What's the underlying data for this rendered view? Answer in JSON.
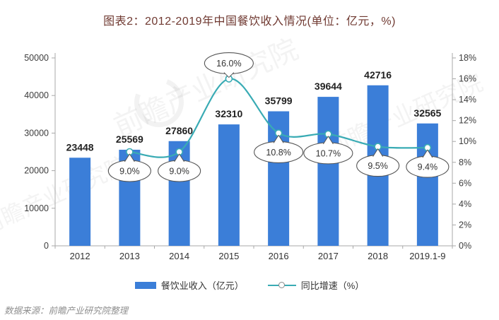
{
  "title": "图表2：2012-2019年中国餐饮收入情况(单位：亿元，%)",
  "source_note": "数据来源：前瞻产业研究院整理",
  "watermark": "前瞻产业研究院",
  "colors": {
    "bar": "#3b7ed8",
    "line": "#39abb4",
    "axis": "#a8a8a8",
    "axis_label": "#3c3c3c",
    "value_label": "#222222",
    "bubble_border": "#555555",
    "bubble_text": "#333333",
    "title": "#703a32",
    "source": "#8f8f8f"
  },
  "legend": [
    {
      "type": "bar",
      "label": "餐饮业收入（亿元）"
    },
    {
      "type": "line",
      "label": "同比增速（%）"
    }
  ],
  "chart_data": {
    "type": "bar+line combo",
    "title": "图表2：2012-2019年中国餐饮收入情况(单位：亿元，%)",
    "grid": false,
    "legend_position": "bottom",
    "categories": [
      "2012",
      "2013",
      "2014",
      "2015",
      "2016",
      "2017",
      "2018",
      "2019.1-9"
    ],
    "series": [
      {
        "name": "餐饮业收入（亿元）",
        "type": "bar",
        "axis": "left",
        "values": [
          23448,
          25569,
          27860,
          32310,
          35799,
          39644,
          42716,
          32565
        ],
        "value_labels": [
          "23448",
          "25569",
          "27860",
          "32310",
          "35799",
          "39644",
          "42716",
          "32565"
        ]
      },
      {
        "name": "同比增速（%）",
        "type": "line",
        "axis": "right",
        "values": [
          null,
          9.0,
          9.0,
          16.0,
          10.8,
          10.7,
          9.5,
          9.4
        ],
        "labels": [
          null,
          "9.0%",
          "9.0%",
          "16.0%",
          "10.8%",
          "10.7%",
          "9.5%",
          "9.4%"
        ],
        "callout_side": [
          null,
          "below",
          "below",
          "above",
          "below",
          "below",
          "below",
          "below"
        ]
      }
    ],
    "left_axis": {
      "min": 0,
      "max": 50000,
      "step": 10000,
      "ticks": [
        "0",
        "10000",
        "20000",
        "30000",
        "40000",
        "50000"
      ]
    },
    "right_axis": {
      "min": 0,
      "max": 18,
      "step": 2,
      "ticks": [
        "0%",
        "2%",
        "4%",
        "6%",
        "8%",
        "10%",
        "12%",
        "14%",
        "16%",
        "18%"
      ]
    }
  }
}
